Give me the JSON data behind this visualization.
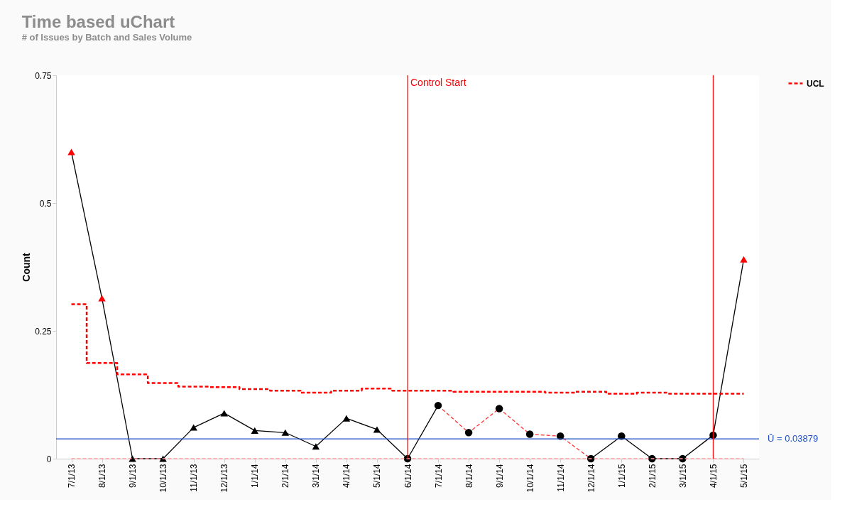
{
  "chart_data": {
    "type": "line",
    "title": "Time based uChart",
    "subtitle": "# of Issues by Batch and Sales Volume",
    "ylabel": "Count",
    "categories": [
      "7/1/13",
      "8/1/13",
      "9/1/13",
      "10/1/13",
      "11/1/13",
      "12/1/13",
      "1/1/14",
      "2/1/14",
      "3/1/14",
      "4/1/14",
      "5/1/14",
      "6/1/14",
      "7/1/14",
      "8/1/14",
      "9/1/14",
      "10/1/14",
      "11/1/14",
      "12/1/14",
      "1/1/15",
      "2/1/15",
      "3/1/15",
      "4/1/15",
      "5/1/15"
    ],
    "series": [
      {
        "color": "#000000",
        "marker": "none",
        "line_style": "solid",
        "values": [
          0.6,
          0.314,
          0,
          0,
          0.061,
          0.089,
          0.055,
          0.051,
          0.024,
          0.079,
          0.057,
          0,
          0.104,
          null,
          null,
          null,
          null,
          0,
          0.044,
          0,
          0,
          0.046,
          0.39
        ]
      },
      {
        "color": "#ff3333",
        "marker": "none",
        "line_style": "dashed",
        "values": [
          null,
          null,
          null,
          null,
          null,
          null,
          null,
          null,
          null,
          null,
          null,
          null,
          0.104,
          0.051,
          0.098,
          0.048,
          0.044,
          0,
          null,
          null,
          null,
          null,
          null
        ]
      },
      {
        "type": "scatter",
        "marker": "triangle",
        "colors": [
          "#ff0000",
          "#ff0000",
          "#000000",
          "#000000",
          "#000000",
          "#000000",
          "#000000",
          "#000000",
          "#000000",
          "#000000",
          "#000000",
          null,
          null,
          null,
          null,
          null,
          null,
          null,
          null,
          null,
          null,
          null,
          "#ff0000"
        ],
        "values": [
          0.6,
          0.314,
          0,
          0,
          0.061,
          0.089,
          0.055,
          0.051,
          0.024,
          0.079,
          0.057,
          null,
          null,
          null,
          null,
          null,
          null,
          null,
          null,
          null,
          null,
          null,
          0.39
        ]
      },
      {
        "type": "scatter",
        "marker": "circle",
        "colors": [
          null,
          null,
          null,
          null,
          null,
          null,
          null,
          null,
          null,
          null,
          null,
          "#000000",
          "#000000",
          "#000000",
          "#000000",
          "#000000",
          "#000000",
          "#000000",
          "#000000",
          "#000000",
          "#000000",
          "#000000",
          null
        ],
        "values": [
          null,
          null,
          null,
          null,
          null,
          null,
          null,
          null,
          null,
          null,
          null,
          0,
          0.104,
          0.051,
          0.098,
          0.048,
          0.044,
          0,
          0.044,
          0,
          0,
          0.046,
          null
        ]
      },
      {
        "type": "step",
        "name": "UCL",
        "color": "#ff0000",
        "marker": "none",
        "line_style": "dashed",
        "values": [
          0.302,
          0.187,
          0.165,
          0.148,
          0.141,
          0.14,
          0.136,
          0.133,
          0.129,
          0.133,
          0.137,
          0.133,
          0.133,
          0.131,
          0.131,
          0.131,
          0.129,
          0.131,
          0.127,
          0.129,
          0.127,
          0.127,
          0.127
        ]
      },
      {
        "color": "#ff9999",
        "marker": "none",
        "line_style": "dashed",
        "values": [
          0,
          0,
          0,
          0,
          0,
          0,
          0,
          0,
          0,
          0,
          0,
          0,
          0,
          0,
          0,
          0,
          0,
          0,
          0,
          0,
          0,
          0,
          0
        ]
      }
    ],
    "ylim": [
      0,
      0.75
    ],
    "yticks": [
      0,
      0.25,
      0.5,
      0.75
    ],
    "grid": false,
    "legend": "right",
    "ref_lines": [
      {
        "axis": "y",
        "value": 0.03879,
        "label": "Ū = 0.03879",
        "color": "#1f4fbf"
      },
      {
        "axis": "x",
        "value": "6/1/14",
        "label": "Control Start",
        "color": "#ff0000"
      },
      {
        "axis": "x",
        "value": "4/1/15",
        "label": null,
        "color": "#ff0000"
      }
    ]
  }
}
